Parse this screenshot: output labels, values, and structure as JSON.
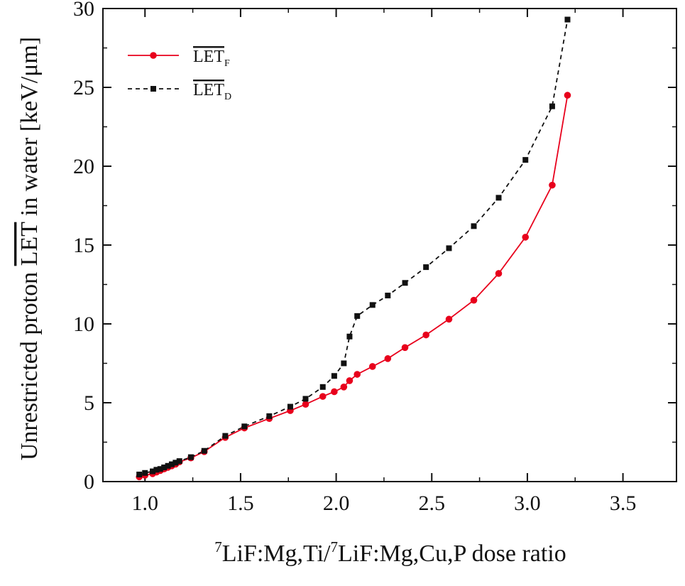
{
  "chart_data": {
    "type": "line",
    "ylabel_before": "Unrestricted proton ",
    "ylabel_overline": "LET",
    "ylabel_after": " in water [keV/μm]",
    "xlabel_sup1": "7",
    "xlabel_part1": "LiF:Mg,Ti/",
    "xlabel_sup2": "7",
    "xlabel_part2": "LiF:Mg,Cu,P dose ratio",
    "xlim": [
      0.78,
      3.78
    ],
    "ylim": [
      0,
      30
    ],
    "xticks": [
      "1.0",
      "1.5",
      "2.0",
      "2.5",
      "3.0",
      "3.5"
    ],
    "yticks": [
      "0",
      "5",
      "10",
      "15",
      "20",
      "25",
      "30"
    ],
    "legend_placement": "top-left",
    "series": [
      {
        "name": "LET",
        "subscript": "F",
        "color": "#e8001c",
        "style": "solid",
        "marker": "circle",
        "x": [
          0.97,
          1.0,
          1.04,
          1.06,
          1.08,
          1.1,
          1.12,
          1.14,
          1.16,
          1.18,
          1.24,
          1.31,
          1.42,
          1.52,
          1.65,
          1.76,
          1.84,
          1.93,
          1.99,
          2.04,
          2.07,
          2.11,
          2.19,
          2.27,
          2.36,
          2.47,
          2.59,
          2.72,
          2.85,
          2.99,
          3.13,
          3.21
        ],
        "y": [
          0.3,
          0.4,
          0.5,
          0.6,
          0.7,
          0.8,
          0.9,
          1.0,
          1.1,
          1.25,
          1.5,
          1.9,
          2.8,
          3.4,
          4.0,
          4.5,
          4.9,
          5.4,
          5.7,
          6.0,
          6.4,
          6.8,
          7.3,
          7.8,
          8.5,
          9.3,
          10.3,
          11.5,
          13.2,
          15.5,
          18.8,
          24.5
        ]
      },
      {
        "name": "LET",
        "subscript": "D",
        "color": "#111111",
        "style": "dashed",
        "marker": "square",
        "x": [
          0.97,
          1.0,
          1.04,
          1.06,
          1.08,
          1.1,
          1.12,
          1.14,
          1.16,
          1.18,
          1.24,
          1.31,
          1.42,
          1.52,
          1.65,
          1.76,
          1.84,
          1.93,
          1.99,
          2.04,
          2.07,
          2.11,
          2.19,
          2.27,
          2.36,
          2.47,
          2.59,
          2.72,
          2.85,
          2.99,
          3.13,
          3.21
        ],
        "y": [
          0.45,
          0.55,
          0.65,
          0.75,
          0.8,
          0.9,
          1.0,
          1.1,
          1.2,
          1.3,
          1.55,
          1.95,
          2.9,
          3.5,
          4.15,
          4.75,
          5.25,
          6.0,
          6.7,
          7.5,
          9.2,
          10.5,
          11.2,
          11.8,
          12.6,
          13.6,
          14.8,
          16.2,
          18.0,
          20.4,
          23.8,
          29.3
        ]
      }
    ]
  }
}
